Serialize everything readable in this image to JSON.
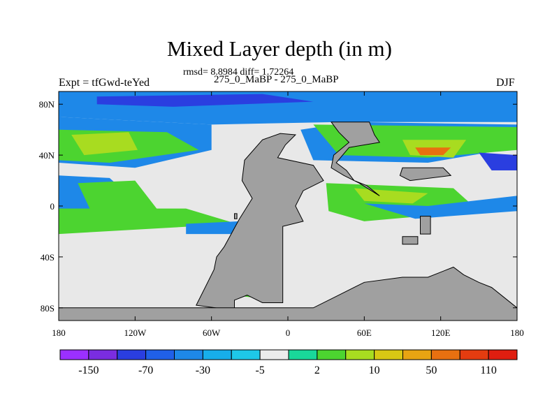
{
  "header": {
    "title": "Mixed Layer depth (in m)",
    "stats": "rmsd= 8.8984 diff= 1.72264",
    "comparison": "275_0_MaBP - 275_0_MaBP",
    "experiment": "Expt = tfGwd-teYed",
    "season": "DJF"
  },
  "axes": {
    "x_ticks": [
      "180",
      "120W",
      "60W",
      "0",
      "60E",
      "120E",
      "180"
    ],
    "y_ticks": [
      "80N",
      "40N",
      "0",
      "40S",
      "80S"
    ]
  },
  "colorbar": {
    "colors": [
      "#9b30ff",
      "#7a2de0",
      "#2a3ee0",
      "#2060e8",
      "#1e88e8",
      "#17aeea",
      "#1ec8e8",
      "#ececec",
      "#19d89a",
      "#4cd430",
      "#a8dc20",
      "#d8c814",
      "#e8a412",
      "#e87010",
      "#e43c10",
      "#e01e10"
    ],
    "labels": [
      "-150",
      "-70",
      "-30",
      "-5",
      "2",
      "10",
      "50",
      "110"
    ]
  },
  "map_colors": {
    "ocean_background": "#e8e8e8",
    "land": "#a0a0a0",
    "cool_anomaly": "#1e88e8",
    "strong_cool_anomaly": "#2a3ee0",
    "warm_anomaly": "#4cd430",
    "strong_warm_anomaly": "#a8dc20"
  }
}
